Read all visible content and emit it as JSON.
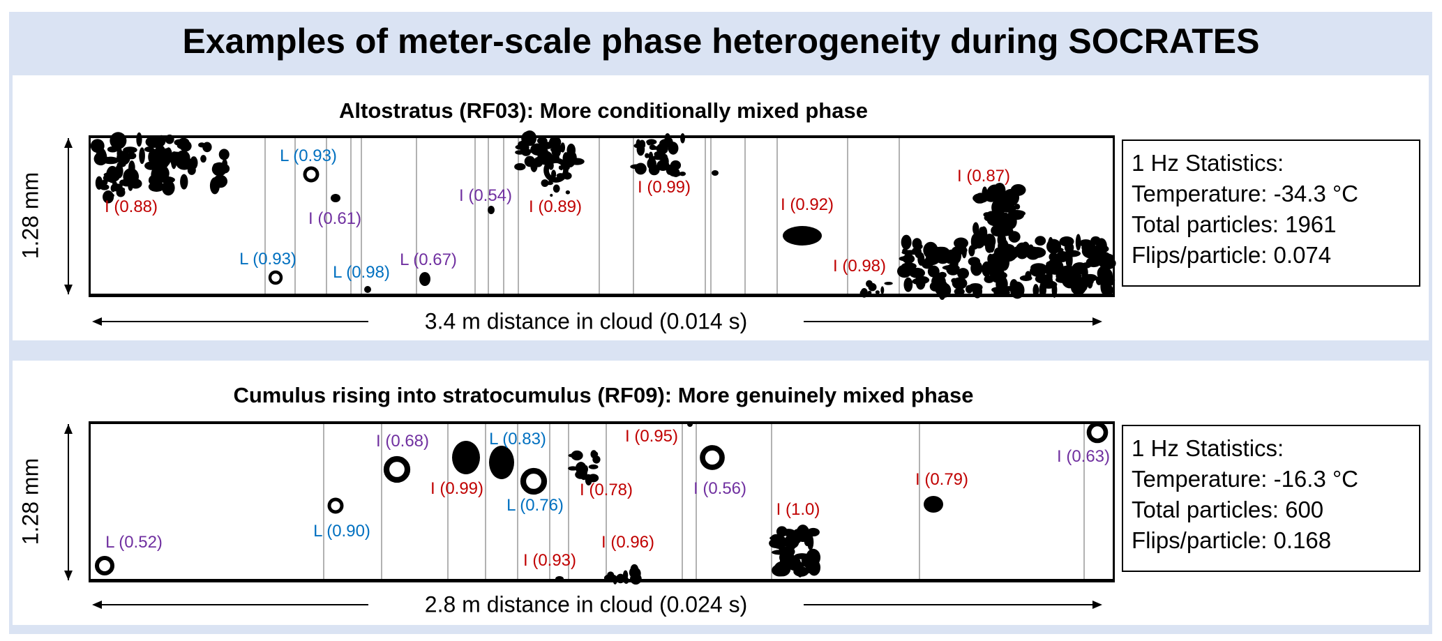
{
  "title": "Examples of meter-scale phase heterogeneity during SOCRATES",
  "colors": {
    "background": "#dae3f3",
    "ice": "#c00000",
    "liquid": "#0070c0",
    "ambiguous": "#7030a0"
  },
  "panels": [
    {
      "subtitle": "Altostratus (RF03): More conditionally mixed phase",
      "y_label": "1.28 mm",
      "distance_label": "3.4 m distance in cloud (0.014 s)",
      "stats": [
        "1 Hz Statistics:",
        "Temperature: -34.3 °C",
        "Total particles: 1961",
        "Flips/particle: 0.074"
      ],
      "labels": [
        {
          "text": "L (0.93)",
          "color": "blue"
        },
        {
          "text": "I (0.88)",
          "color": "red"
        },
        {
          "text": "I (0.61)",
          "color": "purple"
        },
        {
          "text": "I (0.54)",
          "color": "purple"
        },
        {
          "text": "I (0.89)",
          "color": "red"
        },
        {
          "text": "I (0.99)",
          "color": "red"
        },
        {
          "text": "I (0.92)",
          "color": "red"
        },
        {
          "text": "I (0.87)",
          "color": "red"
        },
        {
          "text": "L (0.93)",
          "color": "blue"
        },
        {
          "text": "L (0.98)",
          "color": "blue"
        },
        {
          "text": "L (0.67)",
          "color": "purple"
        },
        {
          "text": "I (0.98)",
          "color": "red"
        }
      ]
    },
    {
      "subtitle": "Cumulus rising into stratocumulus (RF09): More genuinely mixed phase",
      "y_label": "1.28 mm",
      "distance_label": "2.8 m distance in cloud (0.024 s)",
      "stats": [
        "1 Hz Statistics:",
        "Temperature: -16.3 °C",
        "Total particles: 600",
        "Flips/particle: 0.168"
      ],
      "labels": [
        {
          "text": "I (0.68)",
          "color": "purple"
        },
        {
          "text": "L (0.83)",
          "color": "blue"
        },
        {
          "text": "I (0.95)",
          "color": "red"
        },
        {
          "text": "I (0.99)",
          "color": "red"
        },
        {
          "text": "L (0.76)",
          "color": "blue"
        },
        {
          "text": "I (0.78)",
          "color": "red"
        },
        {
          "text": "I (0.56)",
          "color": "purple"
        },
        {
          "text": "I (0.79)",
          "color": "red"
        },
        {
          "text": "I (0.63)",
          "color": "purple"
        },
        {
          "text": "I (1.0)",
          "color": "red"
        },
        {
          "text": "L (0.90)",
          "color": "blue"
        },
        {
          "text": "L (0.52)",
          "color": "purple"
        },
        {
          "text": "I (0.96)",
          "color": "red"
        },
        {
          "text": "I (0.93)",
          "color": "red"
        }
      ]
    }
  ]
}
